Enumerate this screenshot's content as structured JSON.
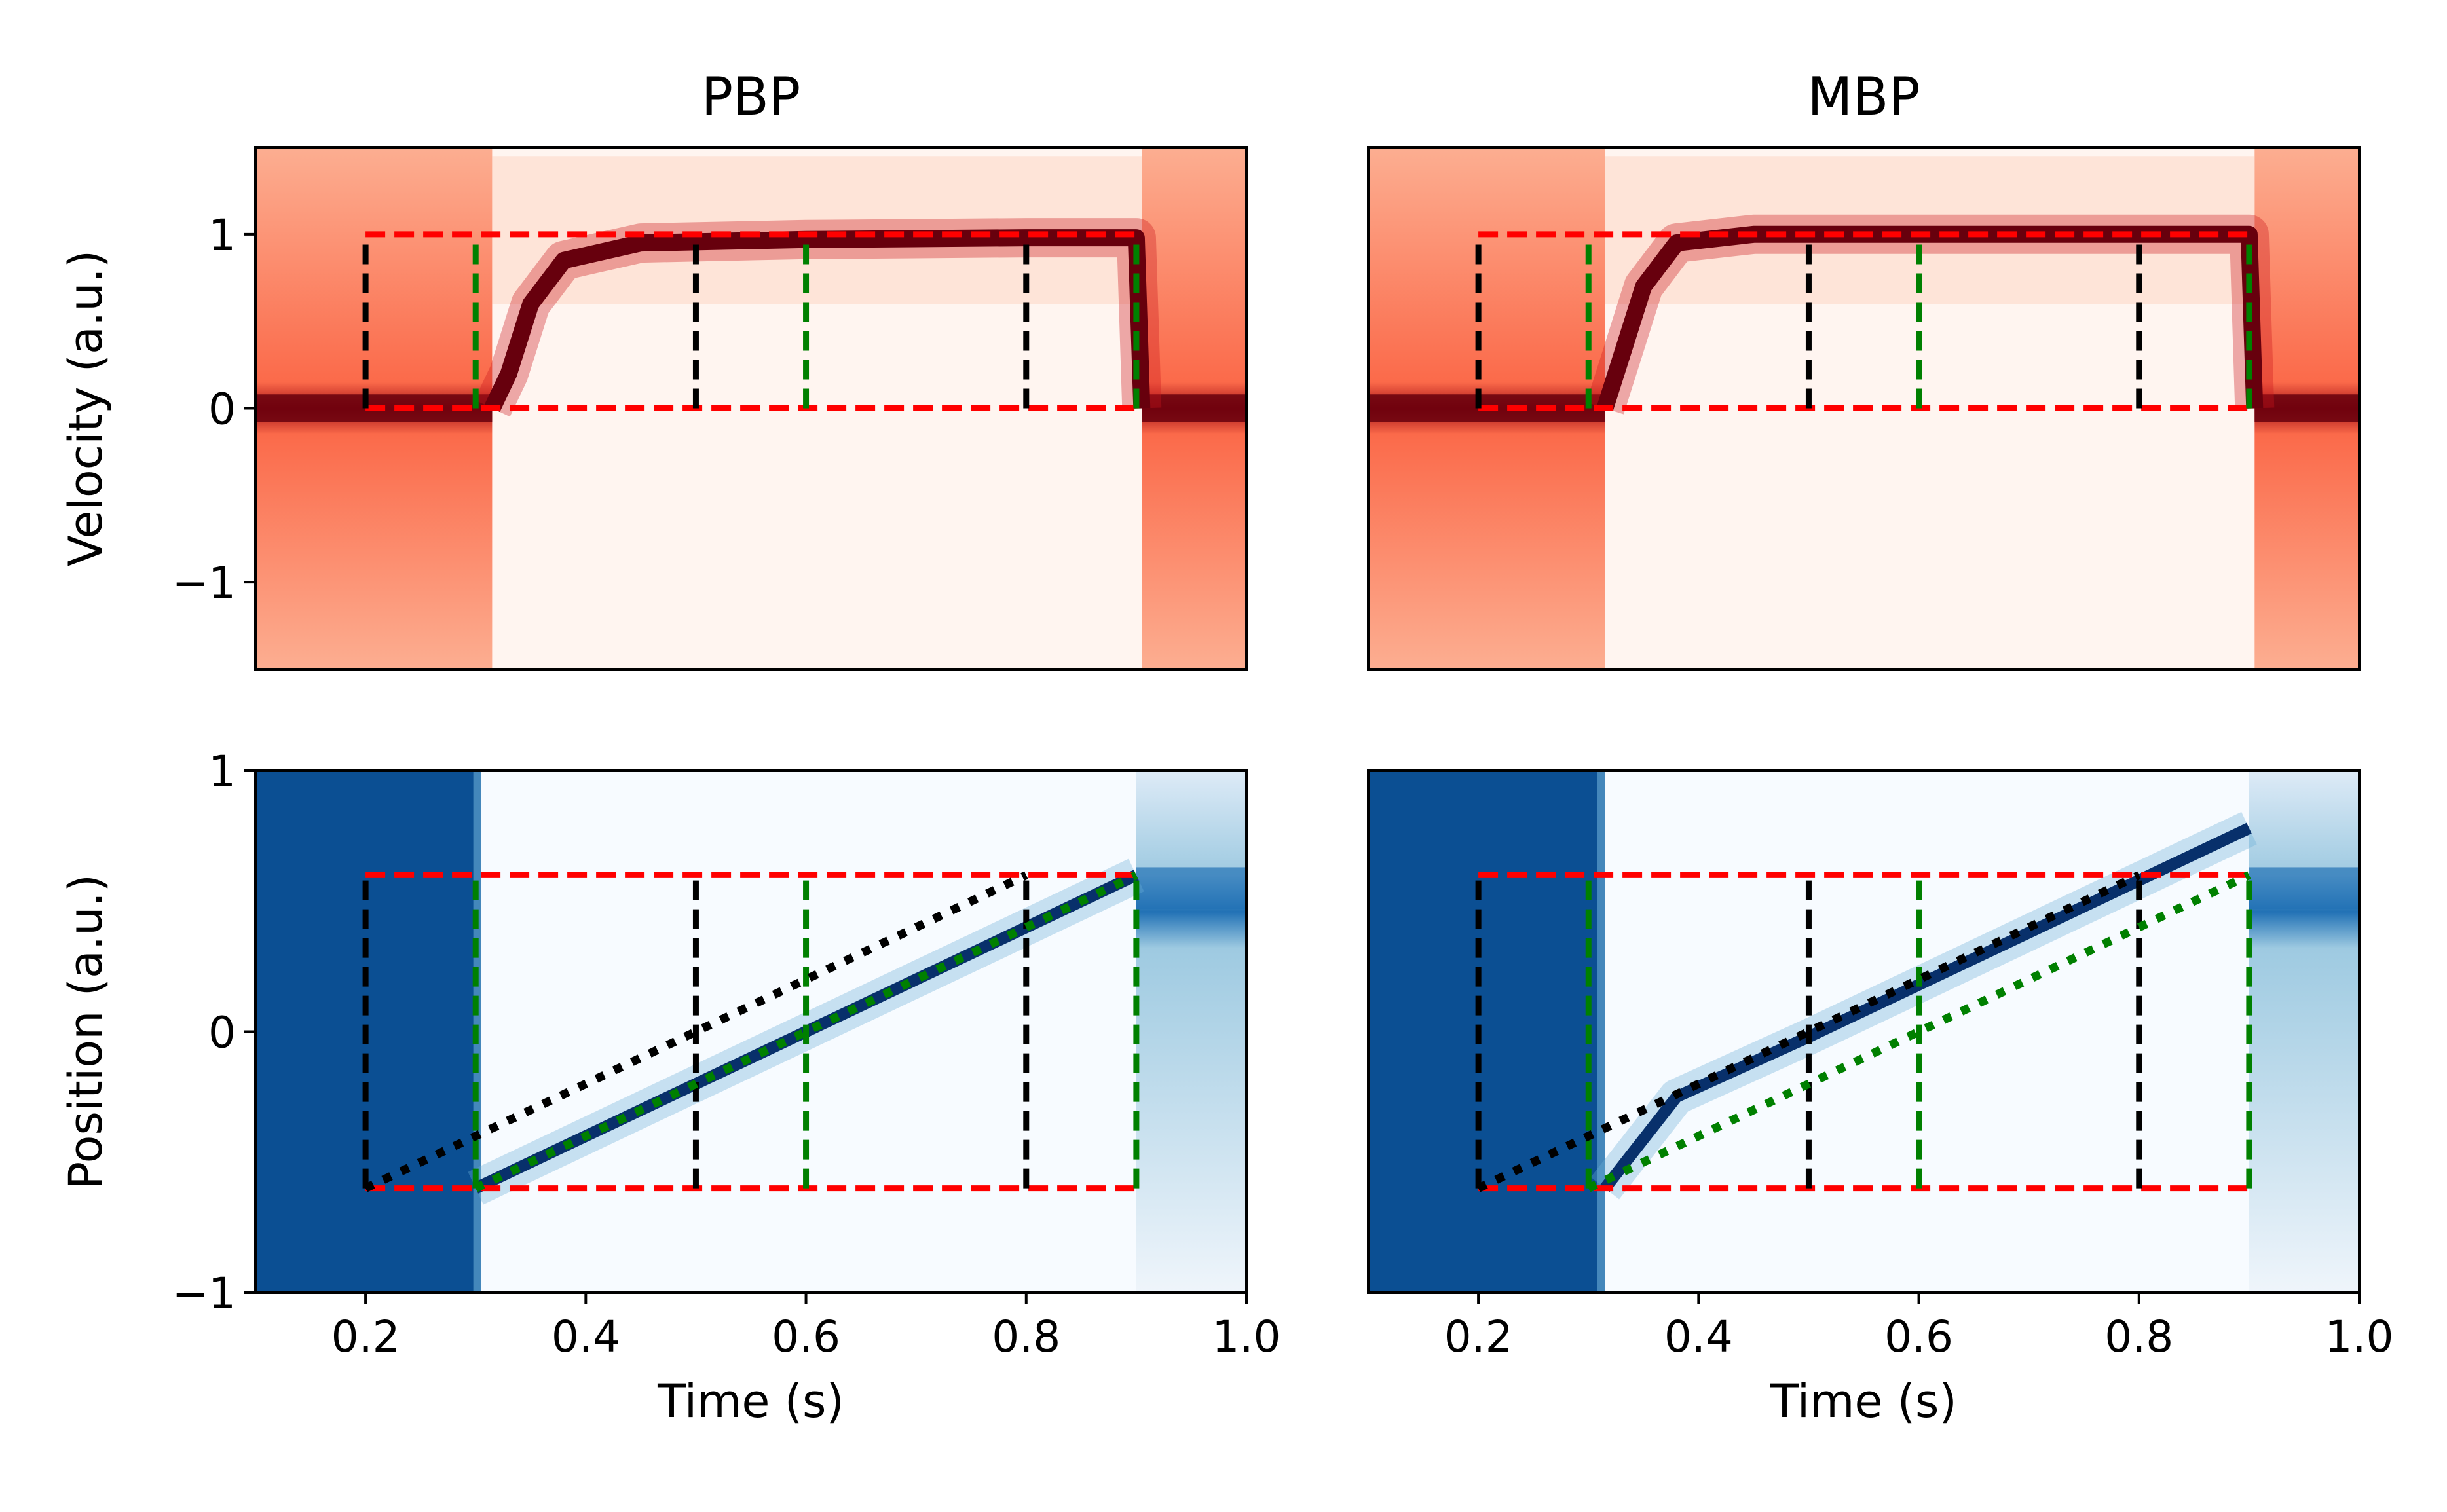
{
  "colors": {
    "reds_light": "#fff5f0",
    "reds_mid": "#fb6a4a",
    "reds_dark": "#67000d",
    "blues_light": "#f7fbff",
    "blues_mid": "#6baed6",
    "blues_dark": "#08306b",
    "bound_red": "#ff0000",
    "marker_black": "#000000",
    "marker_green": "#008000"
  },
  "chart_data": [
    {
      "type": "heatmap",
      "panel": "velocity-pbp",
      "title": "PBP",
      "xlabel": "",
      "ylabel": "Velocity (a.u.)",
      "xlim": [
        0.1,
        1.0
      ],
      "ylim": [
        -1.5,
        1.5
      ],
      "xticks": [],
      "yticks": [
        -1,
        0,
        1
      ],
      "ytick_labels": [
        "−1",
        "0",
        "1"
      ],
      "colormap": "Reds",
      "bounds": {
        "x": [
          0.2,
          0.9
        ],
        "y": [
          0,
          1
        ]
      },
      "black_markers_x": [
        0.2,
        0.5,
        0.8
      ],
      "green_markers_x": [
        0.3,
        0.6,
        0.9
      ],
      "marker_span_y": [
        0,
        0.95
      ],
      "onset_x": 0.315,
      "end_x": 0.905,
      "profile": [
        [
          0.1,
          0.0
        ],
        [
          0.315,
          0.0
        ],
        [
          0.33,
          0.2
        ],
        [
          0.35,
          0.6
        ],
        [
          0.38,
          0.85
        ],
        [
          0.45,
          0.95
        ],
        [
          0.6,
          0.97
        ],
        [
          0.8,
          0.98
        ],
        [
          0.9,
          0.98
        ],
        [
          0.905,
          0.0
        ],
        [
          1.0,
          0.0
        ]
      ]
    },
    {
      "type": "heatmap",
      "panel": "velocity-mbp",
      "title": "MBP",
      "xlabel": "",
      "ylabel": "",
      "xlim": [
        0.1,
        1.0
      ],
      "ylim": [
        -1.5,
        1.5
      ],
      "xticks": [],
      "yticks": [],
      "colormap": "Reds",
      "bounds": {
        "x": [
          0.2,
          0.9
        ],
        "y": [
          0,
          1
        ]
      },
      "black_markers_x": [
        0.2,
        0.5,
        0.8
      ],
      "green_markers_x": [
        0.3,
        0.6,
        0.9
      ],
      "marker_span_y": [
        0,
        0.95
      ],
      "onset_x": 0.315,
      "end_x": 0.905,
      "profile": [
        [
          0.1,
          0.0
        ],
        [
          0.315,
          0.0
        ],
        [
          0.33,
          0.3
        ],
        [
          0.35,
          0.7
        ],
        [
          0.38,
          0.95
        ],
        [
          0.45,
          1.0
        ],
        [
          0.6,
          1.0
        ],
        [
          0.8,
          1.0
        ],
        [
          0.9,
          1.0
        ],
        [
          0.905,
          0.0
        ],
        [
          1.0,
          0.0
        ]
      ]
    },
    {
      "type": "heatmap",
      "panel": "position-pbp",
      "title": "",
      "xlabel": "Time (s)",
      "ylabel": "Position (a.u.)",
      "xlim": [
        0.1,
        1.0
      ],
      "ylim": [
        -1,
        1
      ],
      "xticks": [
        0.2,
        0.4,
        0.6,
        0.8,
        1.0
      ],
      "xtick_labels": [
        "0.2",
        "0.4",
        "0.6",
        "0.8",
        "1.0"
      ],
      "yticks": [
        -1,
        0,
        1
      ],
      "ytick_labels": [
        "−1",
        "0",
        "1"
      ],
      "colormap": "Blues",
      "bounds": {
        "x": [
          0.2,
          0.9
        ],
        "y": [
          -0.6,
          0.6
        ]
      },
      "black_markers_x": [
        0.2,
        0.5,
        0.8
      ],
      "green_markers_x": [
        0.3,
        0.6,
        0.9
      ],
      "marker_span_y": [
        -0.6,
        0.6
      ],
      "black_target": {
        "x": [
          0.2,
          0.8
        ],
        "y": [
          -0.6,
          0.6
        ]
      },
      "green_target": {
        "x": [
          0.3,
          0.9
        ],
        "y": [
          -0.6,
          0.6
        ]
      },
      "onset_x": 0.305,
      "end_x": 0.9,
      "trajectory": [
        [
          0.3,
          -0.6
        ],
        [
          0.9,
          0.6
        ]
      ],
      "final_position": 0.55
    },
    {
      "type": "heatmap",
      "panel": "position-mbp",
      "title": "",
      "xlabel": "Time (s)",
      "ylabel": "",
      "xlim": [
        0.1,
        1.0
      ],
      "ylim": [
        -1,
        1
      ],
      "xticks": [
        0.2,
        0.4,
        0.6,
        0.8,
        1.0
      ],
      "xtick_labels": [
        "0.2",
        "0.4",
        "0.6",
        "0.8",
        "1.0"
      ],
      "yticks": [],
      "colormap": "Blues",
      "bounds": {
        "x": [
          0.2,
          0.9
        ],
        "y": [
          -0.6,
          0.6
        ]
      },
      "black_markers_x": [
        0.2,
        0.5,
        0.8
      ],
      "green_markers_x": [
        0.3,
        0.6,
        0.9
      ],
      "marker_span_y": [
        -0.6,
        0.6
      ],
      "black_target": {
        "x": [
          0.2,
          0.8
        ],
        "y": [
          -0.6,
          0.6
        ]
      },
      "green_target": {
        "x": [
          0.3,
          0.9
        ],
        "y": [
          -0.6,
          0.6
        ]
      },
      "onset_x": 0.315,
      "end_x": 0.9,
      "trajectory": [
        [
          0.315,
          -0.6
        ],
        [
          0.38,
          -0.25
        ],
        [
          0.5,
          -0.02
        ],
        [
          0.6,
          0.18
        ],
        [
          0.7,
          0.38
        ],
        [
          0.8,
          0.58
        ],
        [
          0.9,
          0.78
        ]
      ],
      "final_position": 0.55
    }
  ]
}
